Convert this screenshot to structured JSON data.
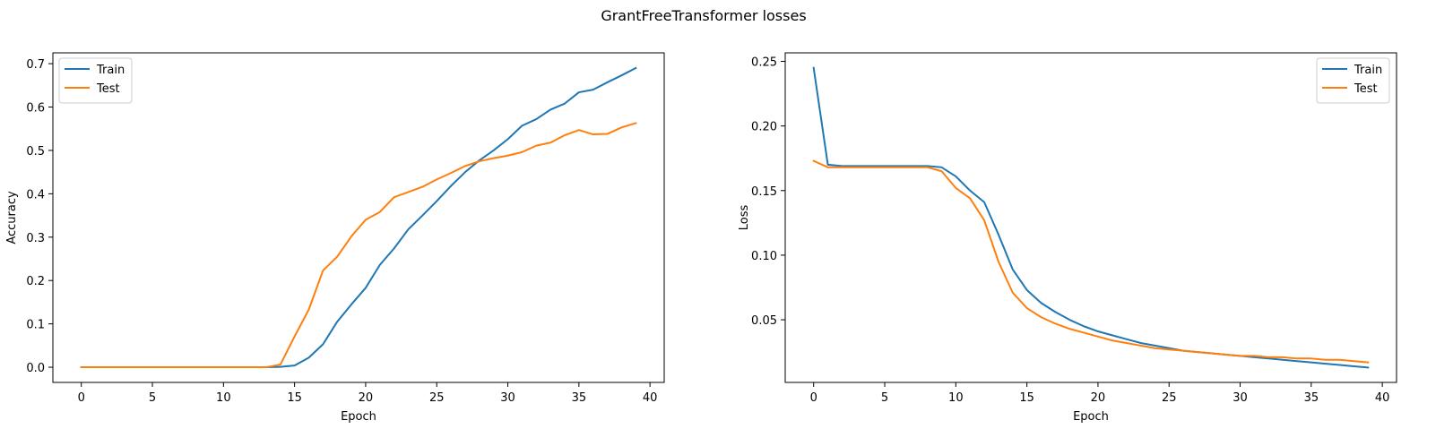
{
  "figure": {
    "suptitle": "GrantFreeTransformer losses"
  },
  "chart_data": [
    {
      "type": "line",
      "title": "",
      "xlabel": "Epoch",
      "ylabel": "Accuracy",
      "xlim": [
        -2,
        41
      ],
      "ylim": [
        -0.035,
        0.725
      ],
      "xticks": [
        0,
        5,
        10,
        15,
        20,
        25,
        30,
        35,
        40
      ],
      "yticks": [
        0.0,
        0.1,
        0.2,
        0.3,
        0.4,
        0.5,
        0.6,
        0.7
      ],
      "ytick_labels": [
        "0.0",
        "0.1",
        "0.2",
        "0.3",
        "0.4",
        "0.5",
        "0.6",
        "0.7"
      ],
      "legend": "top-left",
      "grid": false,
      "x": [
        0,
        1,
        2,
        3,
        4,
        5,
        6,
        7,
        8,
        9,
        10,
        11,
        12,
        13,
        14,
        15,
        16,
        17,
        18,
        19,
        20,
        21,
        22,
        23,
        24,
        25,
        26,
        27,
        28,
        29,
        30,
        31,
        32,
        33,
        34,
        35,
        36,
        37,
        38,
        39
      ],
      "series": [
        {
          "name": "Train",
          "color": "#1f77b4",
          "values": [
            0,
            0,
            0,
            0,
            0,
            0,
            0,
            0,
            0,
            0,
            0,
            0,
            0,
            0,
            0.001,
            0.004,
            0.022,
            0.053,
            0.105,
            0.145,
            0.183,
            0.236,
            0.274,
            0.318,
            0.35,
            0.383,
            0.418,
            0.45,
            0.477,
            0.5,
            0.526,
            0.557,
            0.572,
            0.594,
            0.608,
            0.634,
            0.64,
            0.657,
            0.673,
            0.69
          ]
        },
        {
          "name": "Test",
          "color": "#ff7f0e",
          "values": [
            0,
            0,
            0,
            0,
            0,
            0,
            0,
            0,
            0,
            0,
            0,
            0,
            0,
            0,
            0.006,
            0.071,
            0.133,
            0.223,
            0.255,
            0.302,
            0.34,
            0.358,
            0.392,
            0.404,
            0.416,
            0.433,
            0.448,
            0.464,
            0.475,
            0.482,
            0.488,
            0.496,
            0.511,
            0.518,
            0.535,
            0.547,
            0.537,
            0.538,
            0.553,
            0.563
          ]
        }
      ]
    },
    {
      "type": "line",
      "title": "",
      "xlabel": "Epoch",
      "ylabel": "Loss",
      "xlim": [
        -2,
        41
      ],
      "ylim": [
        0.0015,
        0.2566
      ],
      "xticks": [
        0,
        5,
        10,
        15,
        20,
        25,
        30,
        35,
        40
      ],
      "yticks": [
        0.05,
        0.1,
        0.15,
        0.2,
        0.25
      ],
      "ytick_labels": [
        "0.05",
        "0.10",
        "0.15",
        "0.20",
        "0.25"
      ],
      "legend": "top-right",
      "grid": false,
      "x": [
        0,
        1,
        2,
        3,
        4,
        5,
        6,
        7,
        8,
        9,
        10,
        11,
        12,
        13,
        14,
        15,
        16,
        17,
        18,
        19,
        20,
        21,
        22,
        23,
        24,
        25,
        26,
        27,
        28,
        29,
        30,
        31,
        32,
        33,
        34,
        35,
        36,
        37,
        38,
        39
      ],
      "series": [
        {
          "name": "Train",
          "color": "#1f77b4",
          "values": [
            0.245,
            0.17,
            0.169,
            0.169,
            0.169,
            0.169,
            0.169,
            0.169,
            0.169,
            0.168,
            0.161,
            0.15,
            0.141,
            0.116,
            0.089,
            0.073,
            0.063,
            0.056,
            0.05,
            0.045,
            0.041,
            0.038,
            0.035,
            0.032,
            0.03,
            0.028,
            0.026,
            0.025,
            0.024,
            0.023,
            0.022,
            0.021,
            0.02,
            0.019,
            0.018,
            0.017,
            0.016,
            0.015,
            0.014,
            0.013
          ]
        },
        {
          "name": "Test",
          "color": "#ff7f0e",
          "values": [
            0.173,
            0.168,
            0.168,
            0.168,
            0.168,
            0.168,
            0.168,
            0.168,
            0.168,
            0.165,
            0.152,
            0.144,
            0.127,
            0.095,
            0.071,
            0.059,
            0.052,
            0.047,
            0.043,
            0.04,
            0.037,
            0.034,
            0.032,
            0.03,
            0.028,
            0.027,
            0.026,
            0.025,
            0.024,
            0.023,
            0.022,
            0.022,
            0.021,
            0.021,
            0.02,
            0.02,
            0.019,
            0.019,
            0.018,
            0.017
          ]
        }
      ]
    }
  ]
}
